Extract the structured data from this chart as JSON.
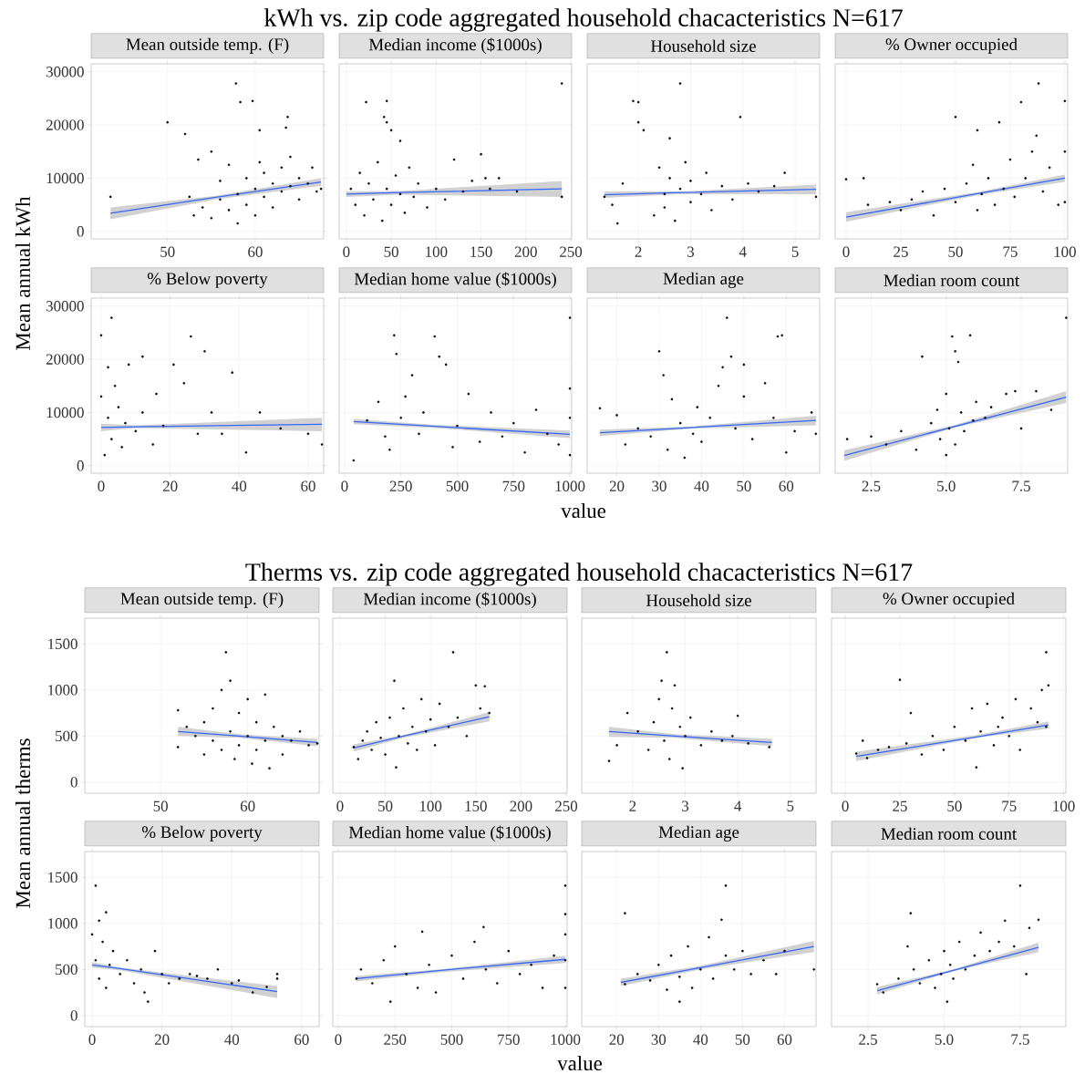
{
  "chart_data": [
    {
      "type": "scatter",
      "title": "Mean outside temp. (F)",
      "annotations": [
        "kWh vs. zip code aggregated household chacacteristics N=617"
      ],
      "ylabel": "Mean annual kWh",
      "xlim": [
        41.3,
        67.8
      ],
      "ylim": [
        -1400,
        31500
      ],
      "xticks": [
        50,
        60
      ],
      "yticks": [
        0,
        10000,
        20000,
        30000
      ],
      "grid": true,
      "marker": "circle",
      "series": [
        {
          "color": "#000000",
          "x": [
            43.5,
            50,
            52,
            57.8,
            58.3,
            59.7,
            60.5,
            63.7,
            63.5,
            53.5,
            55,
            52.5,
            53,
            54,
            55,
            56,
            56,
            57,
            57,
            58,
            58,
            59,
            59,
            60,
            60,
            60.5,
            61,
            61,
            62,
            62,
            63,
            63,
            64,
            64,
            65,
            65,
            66,
            66.5,
            67,
            67.5
          ],
          "values": [
            6500,
            20500,
            18300,
            27800,
            24300,
            24500,
            19000,
            21500,
            19500,
            13500,
            15000,
            6500,
            3000,
            4500,
            2500,
            6000,
            9500,
            4000,
            12500,
            1500,
            7000,
            10000,
            5000,
            3000,
            8000,
            13000,
            6500,
            11000,
            9000,
            4500,
            12000,
            7500,
            8500,
            14000,
            10000,
            6000,
            9000,
            12000,
            7500,
            8000
          ]
        },
        {
          "type": "line",
          "marker": "none",
          "color": "#3366ff",
          "x": [
            43.5,
            55.5,
            67.5
          ],
          "values": [
            3400,
            6400,
            9300
          ],
          "lower": [
            2300,
            6000,
            8600
          ],
          "upper": [
            4500,
            6700,
            10000
          ]
        }
      ]
    },
    {
      "type": "scatter",
      "title": "Median income ($1000s)",
      "tick_labels": "x",
      "xlim": [
        -8,
        251
      ],
      "ylim": [
        -1400,
        31500
      ],
      "xticks": [
        0,
        50,
        100,
        150,
        200,
        250
      ],
      "yticks": [
        0,
        10000,
        20000,
        30000
      ],
      "grid": true,
      "marker": "circle",
      "series": [
        {
          "color": "#000000",
          "x": [
            22,
            45,
            42,
            45,
            50,
            60,
            240,
            5,
            10,
            15,
            20,
            25,
            30,
            35,
            40,
            45,
            50,
            55,
            60,
            65,
            70,
            75,
            80,
            90,
            100,
            110,
            120,
            130,
            140,
            150,
            155,
            160,
            170,
            190,
            240
          ],
          "values": [
            24300,
            24500,
            21500,
            20500,
            19000,
            17000,
            27800,
            8000,
            5000,
            11000,
            3000,
            9000,
            6000,
            13000,
            2000,
            8000,
            5000,
            10500,
            7000,
            3500,
            12000,
            6500,
            9000,
            4500,
            8000,
            6000,
            13500,
            7500,
            9500,
            14500,
            10000,
            8000,
            10000,
            7500,
            6500
          ]
        },
        {
          "type": "line",
          "marker": "none",
          "color": "#3366ff",
          "x": [
            0,
            60,
            240
          ],
          "values": [
            7000,
            7300,
            8000
          ],
          "lower": [
            6500,
            6900,
            6500
          ],
          "upper": [
            7500,
            7600,
            9500
          ]
        }
      ]
    },
    {
      "type": "scatter",
      "title": "Household size",
      "tick_labels": "x",
      "xlim": [
        1.02,
        5.47
      ],
      "ylim": [
        -1400,
        31500
      ],
      "xticks": [
        2,
        3,
        4,
        5
      ],
      "yticks": [
        0,
        10000,
        20000,
        30000
      ],
      "grid": true,
      "marker": "circle",
      "series": [
        {
          "color": "#000000",
          "x": [
            1.35,
            1.5,
            1.6,
            1.7,
            1.9,
            2.0,
            2.0,
            2.1,
            2.3,
            2.4,
            2.5,
            2.5,
            2.6,
            2.6,
            2.7,
            2.8,
            2.8,
            2.9,
            3.0,
            3.0,
            3.2,
            3.3,
            3.4,
            3.6,
            3.8,
            3.95,
            4.1,
            4.3,
            4.6,
            4.8,
            5.4
          ],
          "values": [
            6500,
            5000,
            1500,
            9000,
            24500,
            24300,
            20500,
            19000,
            3000,
            12000,
            7000,
            4500,
            17500,
            10000,
            2000,
            27800,
            8000,
            13000,
            5500,
            9500,
            7000,
            11000,
            4000,
            8500,
            6000,
            21500,
            9000,
            7500,
            8500,
            11000,
            6500
          ]
        },
        {
          "type": "line",
          "marker": "none",
          "color": "#3366ff",
          "x": [
            1.35,
            2.8,
            5.4
          ],
          "values": [
            6900,
            7300,
            7900
          ],
          "lower": [
            6300,
            7000,
            7000
          ],
          "upper": [
            7500,
            7500,
            8800
          ]
        }
      ]
    },
    {
      "type": "scatter",
      "title": "% Owner occupied",
      "tick_labels": "x",
      "xlim": [
        -5,
        101.3
      ],
      "ylim": [
        -1400,
        31500
      ],
      "xticks": [
        0,
        25,
        50,
        75,
        100
      ],
      "yticks": [
        0,
        10000,
        20000,
        30000
      ],
      "grid": true,
      "marker": "circle",
      "series": [
        {
          "color": "#000000",
          "x": [
            0,
            8,
            10,
            20,
            25,
            30,
            35,
            40,
            45,
            50,
            50,
            55,
            58,
            60,
            60,
            62,
            65,
            68,
            70,
            72,
            75,
            77,
            80,
            82,
            85,
            87,
            88,
            90,
            93,
            97,
            100,
            100,
            100
          ],
          "values": [
            9800,
            10000,
            5000,
            5500,
            4000,
            6000,
            7500,
            3000,
            8000,
            21500,
            5500,
            9000,
            12500,
            4000,
            19000,
            7000,
            10000,
            5000,
            20500,
            8000,
            13500,
            6500,
            24300,
            10000,
            15000,
            18000,
            27800,
            7500,
            12000,
            5000,
            24500,
            15000,
            5500
          ]
        },
        {
          "type": "line",
          "marker": "none",
          "color": "#3366ff",
          "x": [
            0,
            60,
            100
          ],
          "values": [
            2700,
            7100,
            10000
          ],
          "lower": [
            1800,
            6800,
            9300
          ],
          "upper": [
            3600,
            7400,
            10700
          ]
        }
      ]
    },
    {
      "type": "scatter",
      "title": "% Below poverty",
      "xlim": [
        -2.9,
        64.5
      ],
      "ylim": [
        -1400,
        31500
      ],
      "xticks": [
        0,
        20,
        40,
        60
      ],
      "yticks": [
        0,
        10000,
        20000,
        30000
      ],
      "grid": true,
      "marker": "circle",
      "series": [
        {
          "color": "#000000",
          "x": [
            0,
            2,
            3,
            0,
            1,
            2,
            3,
            4,
            5,
            6,
            7,
            8,
            10,
            12,
            12,
            15,
            16,
            18,
            21,
            24,
            26,
            28,
            30,
            32,
            35,
            38,
            42,
            46,
            52,
            60,
            64
          ],
          "values": [
            24500,
            18500,
            27800,
            13000,
            2000,
            9000,
            5000,
            15000,
            11000,
            3500,
            8000,
            19000,
            6500,
            20500,
            10000,
            4000,
            13500,
            7500,
            19000,
            15500,
            24300,
            6000,
            21500,
            10000,
            6000,
            17500,
            2500,
            10000,
            7000,
            6000,
            4000
          ]
        },
        {
          "type": "line",
          "marker": "none",
          "color": "#3366ff",
          "x": [
            0,
            10,
            64
          ],
          "values": [
            7200,
            7300,
            7800
          ],
          "lower": [
            6500,
            7100,
            6500
          ],
          "upper": [
            7900,
            7600,
            9000
          ]
        }
      ]
    },
    {
      "type": "scatter",
      "title": "Median home value ($1000s)",
      "xlabel": "value",
      "tick_labels": "x",
      "xlim": [
        -24,
        1008
      ],
      "ylim": [
        -1400,
        31500
      ],
      "xticks": [
        0,
        250,
        500,
        750,
        1000
      ],
      "yticks": [
        0,
        10000,
        20000,
        30000
      ],
      "grid": true,
      "marker": "circle",
      "series": [
        {
          "color": "#000000",
          "x": [
            40,
            100,
            150,
            200,
            220,
            230,
            250,
            300,
            330,
            400,
            420,
            450,
            350,
            500,
            550,
            600,
            650,
            700,
            750,
            800,
            850,
            900,
            950,
            1000,
            1000,
            1000,
            1000,
            180,
            270,
            480
          ],
          "values": [
            1000,
            8500,
            12000,
            3000,
            24500,
            21000,
            9000,
            17000,
            6000,
            24300,
            20500,
            19000,
            10000,
            7500,
            13500,
            4500,
            10000,
            5500,
            8000,
            2500,
            10500,
            6000,
            4000,
            27800,
            14500,
            9000,
            2000,
            5500,
            13000,
            3500
          ]
        },
        {
          "type": "line",
          "marker": "none",
          "color": "#3366ff",
          "x": [
            40,
            400,
            1000
          ],
          "values": [
            8300,
            7400,
            5900
          ],
          "lower": [
            7800,
            7100,
            5200
          ],
          "upper": [
            8800,
            7700,
            6600
          ]
        }
      ]
    },
    {
      "type": "scatter",
      "title": "Median age",
      "tick_labels": "x",
      "xlim": [
        13,
        67.9
      ],
      "ylim": [
        -1400,
        31500
      ],
      "xticks": [
        20,
        30,
        40,
        50,
        60
      ],
      "yticks": [
        0,
        10000,
        20000,
        30000
      ],
      "grid": true,
      "marker": "circle",
      "series": [
        {
          "color": "#000000",
          "x": [
            16,
            20,
            22,
            25,
            28,
            30,
            31,
            32,
            33,
            35,
            36,
            38,
            39,
            40,
            42,
            44,
            45,
            46,
            47,
            48,
            50,
            50,
            52,
            55,
            57,
            58,
            59,
            60,
            62,
            66,
            67
          ],
          "values": [
            10800,
            9500,
            4000,
            7000,
            5500,
            21500,
            17000,
            3000,
            12500,
            8000,
            1500,
            6000,
            11000,
            4500,
            9000,
            15000,
            18500,
            27800,
            20500,
            7000,
            19000,
            13000,
            5000,
            15500,
            9000,
            24300,
            24500,
            2500,
            6500,
            10000,
            6000
          ]
        },
        {
          "type": "line",
          "marker": "none",
          "color": "#3366ff",
          "x": [
            16,
            38,
            67
          ],
          "values": [
            6200,
            7200,
            8500
          ],
          "lower": [
            5600,
            7000,
            7600
          ],
          "upper": [
            6800,
            7400,
            9400
          ]
        }
      ]
    },
    {
      "type": "scatter",
      "title": "Median room count",
      "tick_labels": "x",
      "xlim": [
        1.3,
        9.05
      ],
      "ylim": [
        -1400,
        31500
      ],
      "xticks": [
        {
          "value": 2.5,
          "label": "2.5"
        },
        {
          "value": 5,
          "label": "5.0"
        },
        {
          "value": 7.5,
          "label": "7.5"
        }
      ],
      "yticks": [
        0,
        10000,
        20000,
        30000
      ],
      "grid": true,
      "marker": "circle",
      "series": [
        {
          "color": "#000000",
          "x": [
            1.7,
            2.5,
            3,
            3.5,
            4,
            4.2,
            4.5,
            4.7,
            4.8,
            5.0,
            5.0,
            5.1,
            5.2,
            5.3,
            5.3,
            5.4,
            5.5,
            5.6,
            5.8,
            5.9,
            6.0,
            6.3,
            6.5,
            7.0,
            7.3,
            7.5,
            8.0,
            8.5,
            9.0
          ],
          "values": [
            5000,
            5500,
            4000,
            6500,
            3000,
            20500,
            8000,
            10500,
            5000,
            2000,
            13500,
            7000,
            24300,
            21500,
            4000,
            19500,
            10000,
            6500,
            24500,
            8500,
            12000,
            9000,
            11000,
            13500,
            14000,
            7000,
            14000,
            10500,
            27800
          ]
        },
        {
          "type": "line",
          "marker": "none",
          "color": "#3366ff",
          "x": [
            1.6,
            5.3,
            9.0
          ],
          "values": [
            1900,
            7400,
            12900
          ],
          "lower": [
            900,
            7200,
            11800
          ],
          "upper": [
            2900,
            7700,
            14000
          ]
        }
      ]
    },
    {
      "type": "scatter",
      "title": "Mean outside temp. (F)",
      "annotations": [
        "Therms vs. zip code aggregated household chacacteristics N=617"
      ],
      "ylabel": "Mean annual therms",
      "xlim": [
        41.3,
        68.2
      ],
      "ylim": [
        -120,
        1780
      ],
      "xticks": [
        50,
        60
      ],
      "yticks": [
        0,
        500,
        1000,
        1500
      ],
      "grid": true,
      "marker": "circle",
      "series": [
        {
          "color": "#000000",
          "x": [
            52,
            52,
            53,
            54,
            55,
            55,
            56,
            56,
            57,
            57.5,
            57,
            58,
            58,
            58.5,
            59,
            59,
            60,
            60,
            60.5,
            61,
            61,
            62,
            62,
            62.5,
            63,
            64,
            64,
            65,
            66,
            67,
            68
          ],
          "values": [
            780,
            380,
            600,
            500,
            650,
            300,
            800,
            450,
            1000,
            1410,
            350,
            1100,
            550,
            250,
            750,
            400,
            900,
            500,
            200,
            650,
            350,
            950,
            450,
            150,
            600,
            500,
            300,
            450,
            550,
            400,
            420
          ]
        },
        {
          "type": "line",
          "marker": "none",
          "color": "#3366ff",
          "x": [
            52,
            59,
            68
          ],
          "values": [
            550,
            500,
            430
          ],
          "lower": [
            500,
            480,
            390
          ],
          "upper": [
            600,
            520,
            470
          ]
        }
      ]
    },
    {
      "type": "scatter",
      "title": "Median income ($1000s)",
      "tick_labels": "x",
      "xlim": [
        -8,
        251
      ],
      "ylim": [
        -120,
        1780
      ],
      "xticks": [
        0,
        50,
        100,
        150,
        200,
        250
      ],
      "yticks": [
        0,
        500,
        1000,
        1500
      ],
      "grid": true,
      "marker": "circle",
      "series": [
        {
          "color": "#000000",
          "x": [
            15,
            20,
            25,
            30,
            35,
            40,
            45,
            50,
            55,
            60,
            62,
            65,
            70,
            75,
            80,
            85,
            90,
            95,
            100,
            105,
            110,
            120,
            125,
            130,
            140,
            150,
            155,
            160,
            165
          ],
          "values": [
            380,
            250,
            450,
            550,
            350,
            650,
            480,
            300,
            700,
            1100,
            160,
            500,
            800,
            420,
            600,
            350,
            900,
            550,
            680,
            400,
            850,
            600,
            1410,
            700,
            500,
            1050,
            800,
            1040,
            750
          ]
        },
        {
          "type": "line",
          "marker": "none",
          "color": "#3366ff",
          "x": [
            15,
            70,
            165
          ],
          "values": [
            370,
            500,
            710
          ],
          "lower": [
            330,
            480,
            660
          ],
          "upper": [
            410,
            510,
            760
          ]
        }
      ]
    },
    {
      "type": "scatter",
      "title": "Household size",
      "tick_labels": "x",
      "xlim": [
        1.03,
        5.49
      ],
      "ylim": [
        -120,
        1780
      ],
      "xticks": [
        2,
        3,
        4,
        5
      ],
      "yticks": [
        0,
        500,
        1000,
        1500
      ],
      "grid": true,
      "marker": "circle",
      "series": [
        {
          "color": "#000000",
          "x": [
            1.55,
            1.7,
            1.9,
            2.1,
            2.3,
            2.4,
            2.5,
            2.55,
            2.6,
            2.65,
            2.7,
            2.75,
            2.8,
            2.9,
            2.95,
            3.0,
            3.1,
            3.3,
            3.5,
            3.7,
            3.9,
            4.0,
            4.2,
            4.6
          ],
          "values": [
            230,
            400,
            750,
            550,
            350,
            650,
            900,
            1100,
            450,
            1410,
            250,
            800,
            1050,
            600,
            150,
            500,
            700,
            400,
            550,
            450,
            500,
            720,
            420,
            380
          ]
        },
        {
          "type": "line",
          "marker": "none",
          "color": "#3366ff",
          "x": [
            1.55,
            2.8,
            4.65
          ],
          "values": [
            550,
            500,
            430
          ],
          "lower": [
            490,
            480,
            390
          ],
          "upper": [
            600,
            520,
            470
          ]
        }
      ]
    },
    {
      "type": "scatter",
      "title": "% Owner occupied",
      "tick_labels": "x",
      "xlim": [
        -6.3,
        101
      ],
      "ylim": [
        -120,
        1780
      ],
      "xticks": [
        0,
        25,
        50,
        75,
        100
      ],
      "yticks": [
        0,
        500,
        1000,
        1500
      ],
      "grid": true,
      "marker": "circle",
      "series": [
        {
          "color": "#000000",
          "x": [
            5,
            8,
            10,
            15,
            20,
            25,
            28,
            30,
            35,
            40,
            45,
            50,
            55,
            58,
            60,
            62,
            65,
            68,
            70,
            72,
            75,
            78,
            80,
            85,
            88,
            90,
            92,
            93,
            92
          ],
          "values": [
            310,
            450,
            260,
            350,
            380,
            1110,
            420,
            750,
            300,
            500,
            350,
            600,
            450,
            800,
            160,
            550,
            850,
            400,
            600,
            700,
            500,
            900,
            350,
            800,
            650,
            1000,
            1410,
            1050,
            600
          ]
        },
        {
          "type": "line",
          "marker": "none",
          "color": "#3366ff",
          "x": [
            5,
            60,
            93
          ],
          "values": [
            280,
            490,
            620
          ],
          "lower": [
            230,
            480,
            580
          ],
          "upper": [
            330,
            510,
            660
          ]
        }
      ]
    },
    {
      "type": "scatter",
      "title": "% Below poverty",
      "xlim": [
        -2.1,
        65
      ],
      "ylim": [
        -120,
        1780
      ],
      "xticks": [
        0,
        20,
        40,
        60
      ],
      "yticks": [
        0,
        500,
        1000,
        1500
      ],
      "grid": true,
      "marker": "circle",
      "series": [
        {
          "color": "#000000",
          "x": [
            0,
            1,
            1,
            2,
            2,
            3,
            4,
            4,
            5,
            6,
            8,
            10,
            12,
            14,
            15,
            16,
            18,
            20,
            22,
            25,
            28,
            30,
            33,
            36,
            40,
            42,
            46,
            50,
            53,
            53
          ],
          "values": [
            880,
            1410,
            600,
            1030,
            400,
            800,
            1120,
            300,
            550,
            700,
            450,
            600,
            350,
            500,
            250,
            150,
            700,
            450,
            350,
            400,
            450,
            430,
            400,
            500,
            350,
            380,
            250,
            310,
            450,
            400
          ]
        },
        {
          "type": "line",
          "marker": "none",
          "color": "#3366ff",
          "x": [
            0,
            8,
            53
          ],
          "values": [
            550,
            510,
            260
          ],
          "lower": [
            520,
            490,
            190
          ],
          "upper": [
            580,
            520,
            320
          ]
        }
      ]
    },
    {
      "type": "scatter",
      "title": "Median home value ($1000s)",
      "xlabel": "value",
      "tick_labels": "x",
      "xlim": [
        -24,
        1008
      ],
      "ylim": [
        -120,
        1780
      ],
      "xticks": [
        0,
        250,
        500,
        750,
        1000
      ],
      "yticks": [
        0,
        500,
        1000,
        1500
      ],
      "grid": true,
      "marker": "circle",
      "series": [
        {
          "color": "#000000",
          "x": [
            80,
            100,
            150,
            200,
            230,
            250,
            300,
            350,
            370,
            400,
            430,
            500,
            550,
            600,
            640,
            650,
            700,
            750,
            800,
            850,
            900,
            950,
            1000,
            1000,
            1000,
            1000,
            1000
          ],
          "values": [
            400,
            500,
            350,
            600,
            150,
            750,
            450,
            300,
            910,
            550,
            250,
            650,
            400,
            800,
            960,
            500,
            350,
            700,
            450,
            550,
            300,
            650,
            1410,
            1100,
            880,
            300,
            600
          ]
        },
        {
          "type": "line",
          "marker": "none",
          "color": "#3366ff",
          "x": [
            80,
            450,
            1000
          ],
          "values": [
            400,
            490,
            610
          ],
          "lower": [
            370,
            470,
            570
          ],
          "upper": [
            430,
            500,
            650
          ]
        }
      ]
    },
    {
      "type": "scatter",
      "title": "Median age",
      "tick_labels": "x",
      "xlim": [
        11.7,
        67.5
      ],
      "ylim": [
        -120,
        1780
      ],
      "xticks": [
        20,
        30,
        40,
        50,
        60
      ],
      "yticks": [
        0,
        500,
        1000,
        1500
      ],
      "grid": true,
      "marker": "circle",
      "series": [
        {
          "color": "#000000",
          "x": [
            22,
            22,
            25,
            28,
            30,
            32,
            33,
            35,
            35,
            37,
            38,
            40,
            42,
            43,
            45,
            46,
            46,
            48,
            50,
            52,
            55,
            58,
            60,
            67
          ],
          "values": [
            1110,
            340,
            450,
            380,
            550,
            280,
            650,
            150,
            420,
            750,
            300,
            500,
            850,
            400,
            1040,
            1410,
            650,
            500,
            700,
            450,
            600,
            450,
            700,
            500
          ]
        },
        {
          "type": "line",
          "marker": "none",
          "color": "#3366ff",
          "x": [
            21,
            40,
            67
          ],
          "values": [
            360,
            520,
            750
          ],
          "lower": [
            320,
            500,
            690
          ],
          "upper": [
            400,
            540,
            810
          ]
        }
      ]
    },
    {
      "type": "scatter",
      "title": "Median room count",
      "tick_labels": "x",
      "xlim": [
        1.3,
        9.0
      ],
      "ylim": [
        -120,
        1780
      ],
      "xticks": [
        {
          "value": 2.5,
          "label": "2.5"
        },
        {
          "value": 5,
          "label": "5.0"
        },
        {
          "value": 7.5,
          "label": "7.5"
        }
      ],
      "yticks": [
        0,
        500,
        1000,
        1500
      ],
      "grid": true,
      "marker": "circle",
      "series": [
        {
          "color": "#000000",
          "x": [
            2.8,
            3.0,
            3.5,
            3.8,
            3.9,
            4.0,
            4.2,
            4.5,
            4.7,
            4.9,
            5.0,
            5.1,
            5.2,
            5.3,
            5.5,
            5.7,
            6.0,
            6.2,
            6.5,
            6.8,
            7.0,
            7.3,
            7.5,
            7.7,
            7.8,
            8.1
          ],
          "values": [
            340,
            250,
            400,
            750,
            1110,
            500,
            350,
            600,
            300,
            450,
            700,
            150,
            550,
            400,
            800,
            500,
            650,
            900,
            700,
            800,
            1030,
            750,
            1410,
            450,
            950,
            1040
          ]
        },
        {
          "type": "line",
          "marker": "none",
          "color": "#3366ff",
          "x": [
            2.8,
            5.3,
            8.1
          ],
          "values": [
            270,
            490,
            740
          ],
          "lower": [
            230,
            480,
            690
          ],
          "upper": [
            310,
            500,
            790
          ]
        }
      ]
    }
  ]
}
